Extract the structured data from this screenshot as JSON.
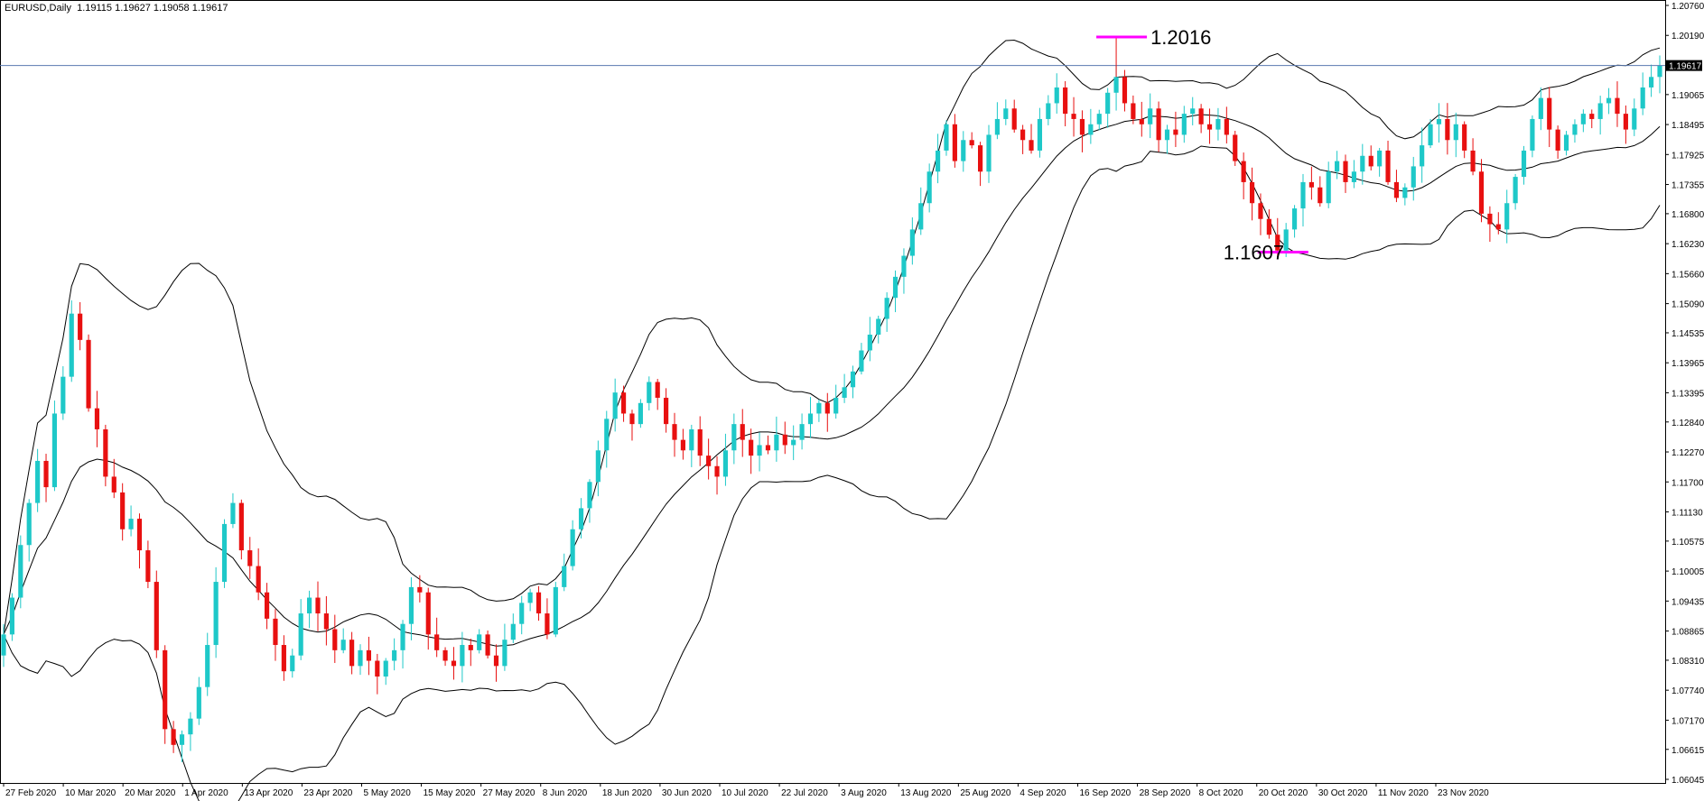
{
  "header": {
    "symbol": "EURUSD,Daily",
    "ohlc": "1.19115 1.19627 1.19058 1.19617"
  },
  "colors": {
    "bull": "#1ec8c8",
    "bear": "#e81010",
    "band": "#000000",
    "annotation": "#ff00ff",
    "current_line": "#5a7ab0",
    "price_tag_bg": "#000000"
  },
  "chart_data": {
    "type": "candlestick",
    "title": "",
    "xlabel": "",
    "ylabel": "",
    "ylim": [
      1.06045,
      1.2076
    ],
    "grid": false,
    "y_ticks": [
      "1.20760",
      "1.20190",
      "1.19617",
      "1.19065",
      "1.18495",
      "1.17925",
      "1.17355",
      "1.16800",
      "1.16230",
      "1.15660",
      "1.15090",
      "1.14535",
      "1.13965",
      "1.13395",
      "1.12840",
      "1.12270",
      "1.11700",
      "1.11130",
      "1.10575",
      "1.10005",
      "1.09435",
      "1.08865",
      "1.08310",
      "1.07740",
      "1.07170",
      "1.06615",
      "1.06045"
    ],
    "x_ticks": [
      "27 Feb 2020",
      "10 Mar 2020",
      "20 Mar 2020",
      "1 Apr 2020",
      "13 Apr 2020",
      "23 Apr 2020",
      "5 May 2020",
      "15 May 2020",
      "27 May 2020",
      "8 Jun 2020",
      "18 Jun 2020",
      "30 Jun 2020",
      "10 Jul 2020",
      "22 Jul 2020",
      "3 Aug 2020",
      "13 Aug 2020",
      "25 Aug 2020",
      "4 Sep 2020",
      "16 Sep 2020",
      "28 Sep 2020",
      "8 Oct 2020",
      "20 Oct 2020",
      "30 Oct 2020",
      "11 Nov 2020",
      "23 Nov 2020"
    ],
    "current_price": "1.19617",
    "close": [
      1.088,
      1.095,
      1.105,
      1.113,
      1.121,
      1.116,
      1.13,
      1.137,
      1.149,
      1.144,
      1.131,
      1.127,
      1.118,
      1.115,
      1.108,
      1.11,
      1.104,
      1.098,
      1.085,
      1.07,
      1.067,
      1.069,
      1.072,
      1.078,
      1.086,
      1.098,
      1.109,
      1.113,
      1.104,
      1.101,
      1.096,
      1.091,
      1.086,
      1.081,
      1.084,
      1.092,
      1.095,
      1.092,
      1.089,
      1.085,
      1.087,
      1.082,
      1.085,
      1.083,
      1.08,
      1.083,
      1.085,
      1.09,
      1.097,
      1.096,
      1.088,
      1.085,
      1.083,
      1.082,
      1.086,
      1.085,
      1.088,
      1.084,
      1.082,
      1.087,
      1.09,
      1.094,
      1.096,
      1.092,
      1.088,
      1.097,
      1.101,
      1.108,
      1.112,
      1.117,
      1.123,
      1.129,
      1.134,
      1.13,
      1.128,
      1.132,
      1.136,
      1.133,
      1.128,
      1.125,
      1.123,
      1.127,
      1.122,
      1.12,
      1.118,
      1.123,
      1.128,
      1.125,
      1.122,
      1.124,
      1.123,
      1.126,
      1.124,
      1.125,
      1.128,
      1.13,
      1.132,
      1.13,
      1.133,
      1.135,
      1.138,
      1.142,
      1.145,
      1.148,
      1.152,
      1.156,
      1.16,
      1.165,
      1.17,
      1.176,
      1.18,
      1.185,
      1.178,
      1.182,
      1.181,
      1.176,
      1.183,
      1.186,
      1.188,
      1.184,
      1.182,
      1.18,
      1.186,
      1.189,
      1.192,
      1.187,
      1.186,
      1.183,
      1.185,
      1.187,
      1.191,
      1.194,
      1.189,
      1.186,
      1.185,
      1.188,
      1.182,
      1.184,
      1.183,
      1.187,
      1.188,
      1.185,
      1.184,
      1.186,
      1.183,
      1.178,
      1.174,
      1.17,
      1.167,
      1.164,
      1.161,
      1.165,
      1.169,
      1.174,
      1.173,
      1.17,
      1.176,
      1.178,
      1.174,
      1.176,
      1.179,
      1.177,
      1.18,
      1.174,
      1.171,
      1.173,
      1.177,
      1.181,
      1.185,
      1.186,
      1.182,
      1.185,
      1.18,
      1.176,
      1.168,
      1.166,
      1.165,
      1.17,
      1.175,
      1.18,
      1.186,
      1.19,
      1.184,
      1.18,
      1.183,
      1.185,
      1.187,
      1.186,
      1.189,
      1.19,
      1.187,
      1.184,
      1.188,
      1.192,
      1.194,
      1.1962
    ]
  },
  "annotations": [
    {
      "label": "1.2016",
      "price": 1.2016
    },
    {
      "label": "1.1607",
      "price": 1.1607
    }
  ]
}
